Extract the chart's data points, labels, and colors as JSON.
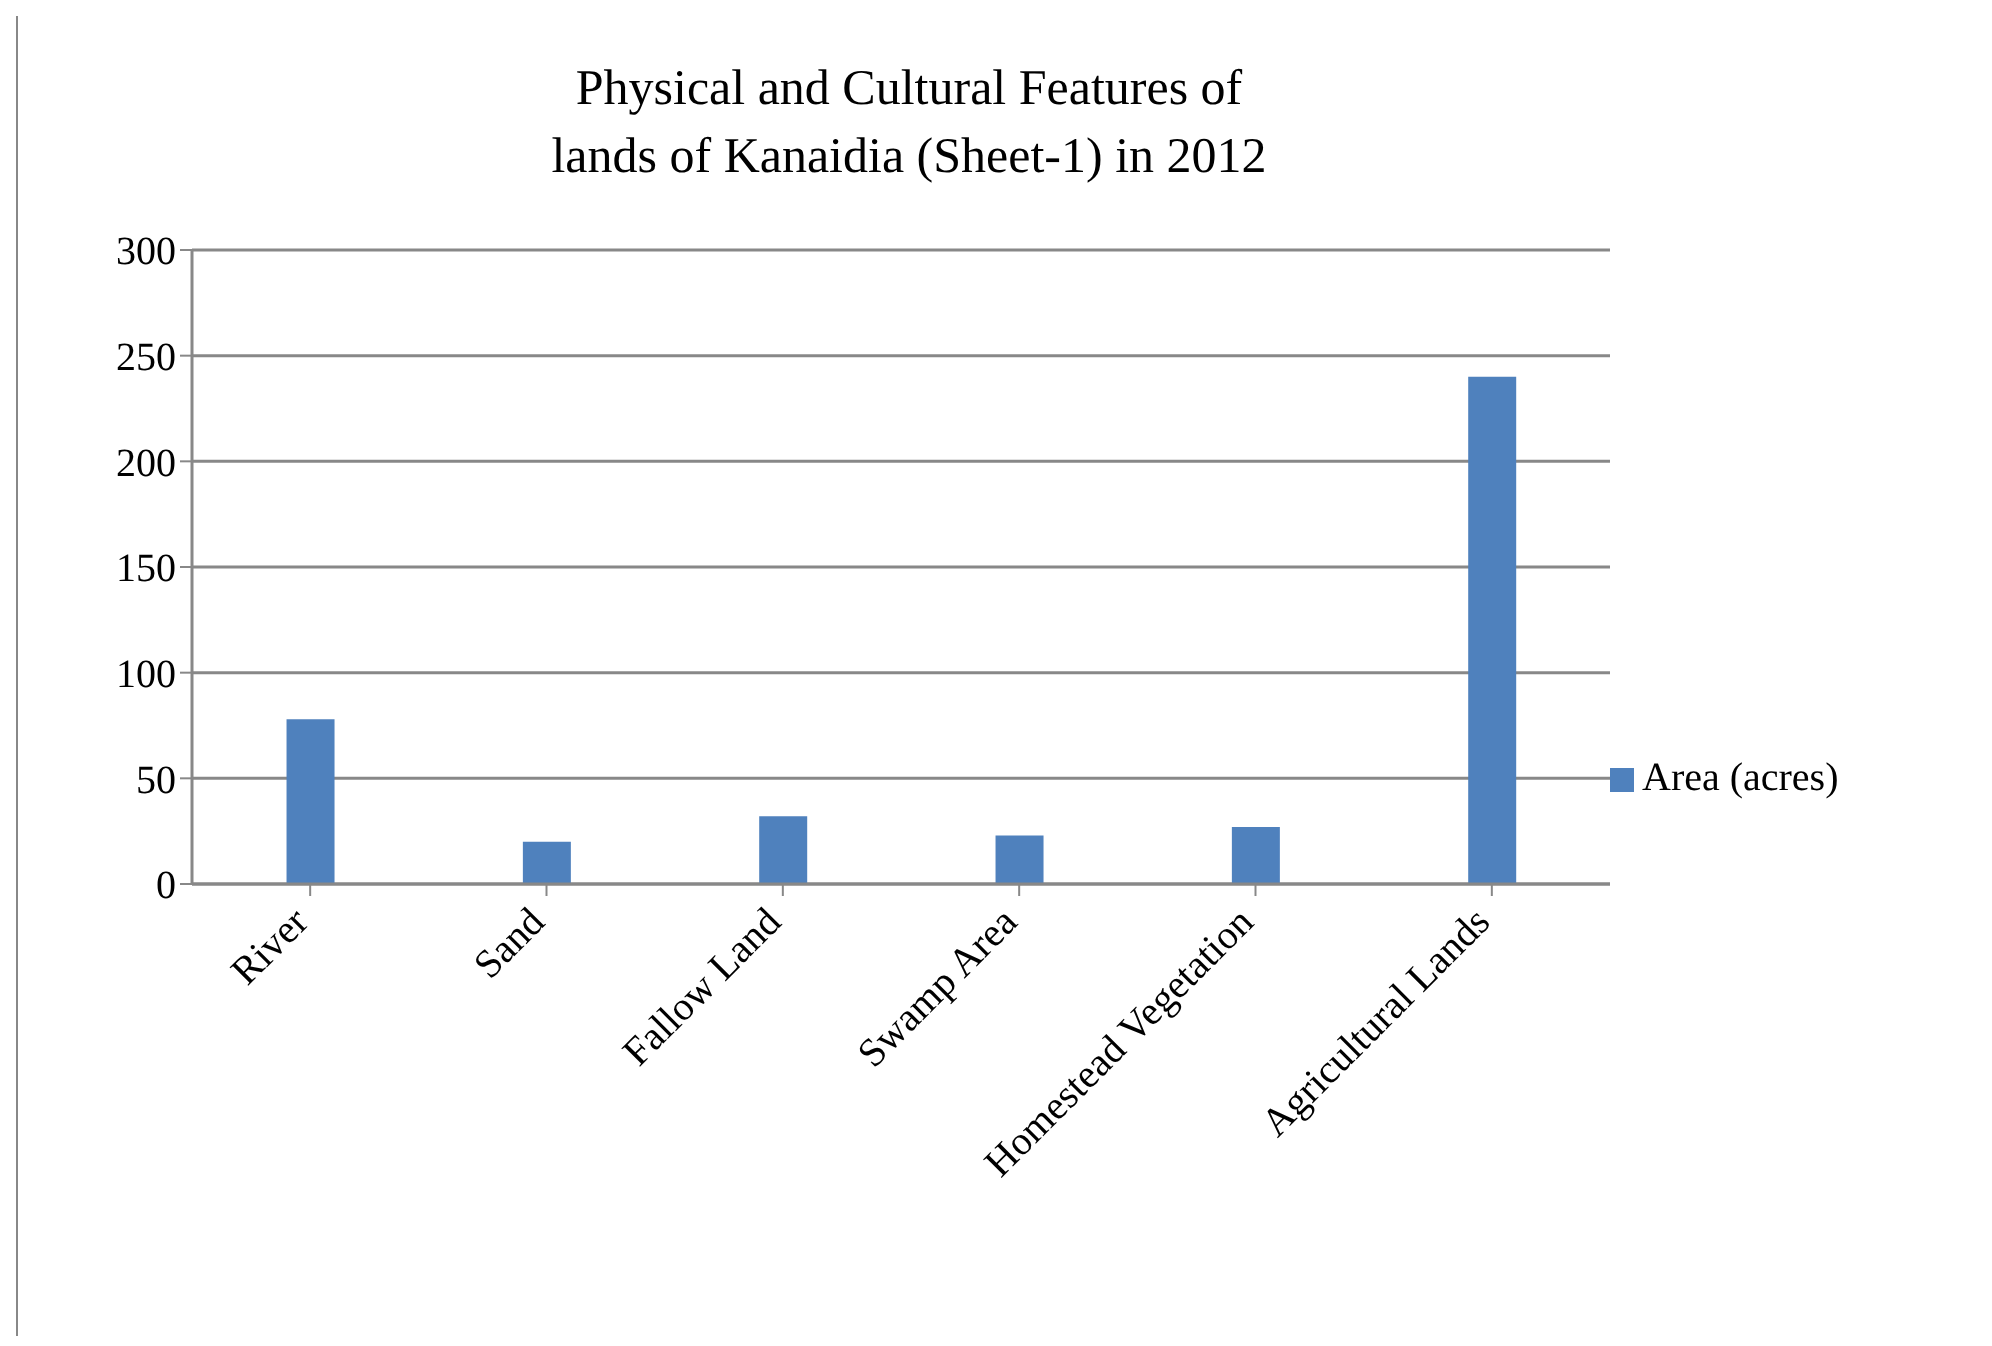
{
  "chart_data": {
    "type": "bar",
    "title": "Physical and Cultural Features of\nlands of Kanaidia (Sheet-1) in 2012",
    "categories": [
      "River",
      "Sand",
      "Fallow Land",
      "Swamp Area",
      "Homestead Vegetation",
      "Agricultural Lands"
    ],
    "series": [
      {
        "name": "Area (acres)",
        "color": "#4f81bd",
        "values": [
          78,
          20,
          32,
          23,
          27,
          240
        ]
      }
    ],
    "ylim": [
      0,
      300
    ],
    "yticks": [
      0,
      50,
      100,
      150,
      200,
      250,
      300
    ],
    "grid": "y",
    "legend": "right"
  }
}
